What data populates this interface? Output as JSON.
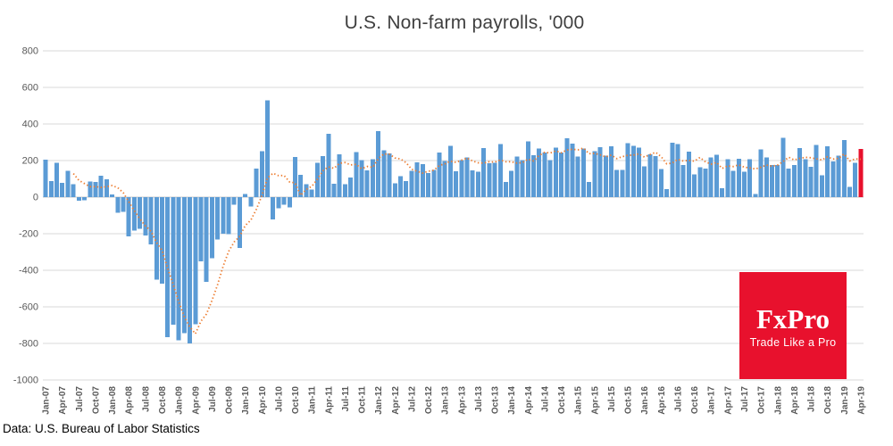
{
  "title": "U.S. Non-farm payrolls, '000",
  "source": "Data: U.S. Bureau of Labor Statistics",
  "logo": {
    "name": "FxPro",
    "tagline": "Trade Like a Pro",
    "bg_color": "#e8112d",
    "text_color": "#ffffff"
  },
  "chart_data": {
    "type": "bar",
    "title": "U.S. Non-farm payrolls, '000",
    "xlabel": "",
    "ylabel": "",
    "ylim": [
      -1000,
      800
    ],
    "ytick_step": 200,
    "xtick_every": 3,
    "grid": true,
    "legend": "none",
    "bar_color": "#5b9bd5",
    "highlight_last_bar": true,
    "highlight_color": "#e8112d",
    "ma_window": 6,
    "ma_color": "#ed7d31",
    "ma_style": "dotted",
    "grid_color": "#d9d9d9",
    "axis_label_color": "#595959",
    "categories": [
      "Jan-07",
      "Feb-07",
      "Mar-07",
      "Apr-07",
      "May-07",
      "Jun-07",
      "Jul-07",
      "Aug-07",
      "Sep-07",
      "Oct-07",
      "Nov-07",
      "Dec-07",
      "Jan-08",
      "Feb-08",
      "Mar-08",
      "Apr-08",
      "May-08",
      "Jun-08",
      "Jul-08",
      "Aug-08",
      "Sep-08",
      "Oct-08",
      "Nov-08",
      "Dec-08",
      "Jan-09",
      "Feb-09",
      "Mar-09",
      "Apr-09",
      "May-09",
      "Jun-09",
      "Jul-09",
      "Aug-09",
      "Sep-09",
      "Oct-09",
      "Nov-09",
      "Dec-09",
      "Jan-10",
      "Feb-10",
      "Mar-10",
      "Apr-10",
      "May-10",
      "Jun-10",
      "Jul-10",
      "Aug-10",
      "Sep-10",
      "Oct-10",
      "Nov-10",
      "Dec-10",
      "Jan-11",
      "Feb-11",
      "Mar-11",
      "Apr-11",
      "May-11",
      "Jun-11",
      "Jul-11",
      "Aug-11",
      "Sep-11",
      "Oct-11",
      "Nov-11",
      "Dec-11",
      "Jan-12",
      "Feb-12",
      "Mar-12",
      "Apr-12",
      "May-12",
      "Jun-12",
      "Jul-12",
      "Aug-12",
      "Sep-12",
      "Oct-12",
      "Nov-12",
      "Dec-12",
      "Jan-13",
      "Feb-13",
      "Mar-13",
      "Apr-13",
      "May-13",
      "Jun-13",
      "Jul-13",
      "Aug-13",
      "Sep-13",
      "Oct-13",
      "Nov-13",
      "Dec-13",
      "Jan-14",
      "Feb-14",
      "Mar-14",
      "Apr-14",
      "May-14",
      "Jun-14",
      "Jul-14",
      "Aug-14",
      "Sep-14",
      "Oct-14",
      "Nov-14",
      "Dec-14",
      "Jan-15",
      "Feb-15",
      "Mar-15",
      "Apr-15",
      "May-15",
      "Jun-15",
      "Jul-15",
      "Aug-15",
      "Sep-15",
      "Oct-15",
      "Nov-15",
      "Dec-15",
      "Jan-16",
      "Feb-16",
      "Mar-16",
      "Apr-16",
      "May-16",
      "Jun-16",
      "Jul-16",
      "Aug-16",
      "Sep-16",
      "Oct-16",
      "Nov-16",
      "Dec-16",
      "Jan-17",
      "Feb-17",
      "Mar-17",
      "Apr-17",
      "May-17",
      "Jun-17",
      "Jul-17",
      "Aug-17",
      "Sep-17",
      "Oct-17",
      "Nov-17",
      "Dec-17",
      "Jan-18",
      "Feb-18",
      "Mar-18",
      "Apr-18",
      "May-18",
      "Jun-18",
      "Jul-18",
      "Aug-18",
      "Sep-18",
      "Oct-18",
      "Nov-18",
      "Dec-18",
      "Jan-19",
      "Feb-19",
      "Mar-19",
      "Apr-19"
    ],
    "values": [
      205,
      88,
      188,
      78,
      144,
      71,
      -20,
      -16,
      85,
      82,
      118,
      97,
      15,
      -86,
      -80,
      -214,
      -182,
      -172,
      -210,
      -259,
      -452,
      -474,
      -765,
      -697,
      -783,
      -743,
      -800,
      -695,
      -352,
      -463,
      -335,
      -231,
      -199,
      -202,
      -42,
      -279,
      18,
      -50,
      156,
      251,
      530,
      -122,
      -61,
      -42,
      -57,
      220,
      121,
      71,
      42,
      188,
      225,
      346,
      73,
      235,
      70,
      107,
      246,
      202,
      146,
      207,
      360,
      257,
      239,
      75,
      115,
      87,
      143,
      190,
      181,
      132,
      149,
      243,
      197,
      280,
      141,
      203,
      218,
      146,
      140,
      269,
      185,
      189,
      291,
      84,
      144,
      222,
      203,
      304,
      229,
      267,
      243,
      203,
      271,
      243,
      321,
      292,
      221,
      265,
      84,
      251,
      273,
      228,
      277,
      150,
      149,
      295,
      280,
      271,
      168,
      233,
      225,
      153,
      43,
      297,
      291,
      176,
      249,
      124,
      164,
      155,
      216,
      232,
      50,
      207,
      145,
      210,
      138,
      208,
      18,
      261,
      216,
      175,
      176,
      324,
      155,
      175,
      268,
      208,
      165,
      286,
      119,
      277,
      196,
      227,
      312,
      56,
      189,
      263
    ]
  }
}
